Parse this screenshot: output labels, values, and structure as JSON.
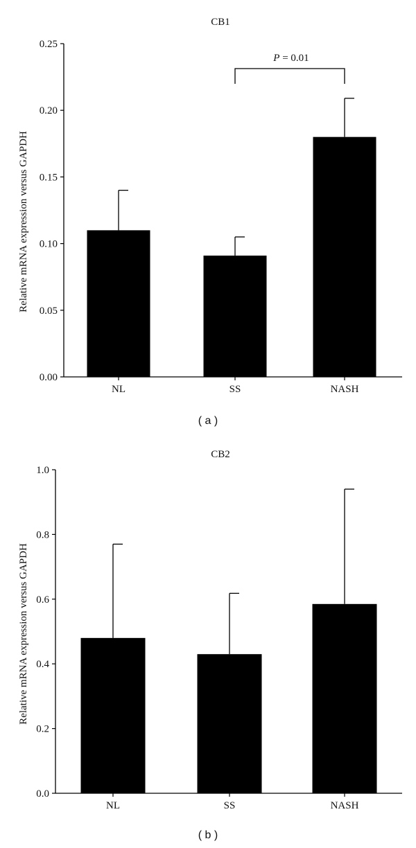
{
  "chart_data": [
    {
      "type": "bar",
      "title": "CB1",
      "ylabel": "Relative mRNA expression versus GAPDH",
      "xlabel": "",
      "categories": [
        "NL",
        "SS",
        "NASH"
      ],
      "values": [
        0.11,
        0.091,
        0.18
      ],
      "error_upper": [
        0.14,
        0.105,
        0.209
      ],
      "ylim": [
        0,
        0.25
      ],
      "yticks": [
        0.0,
        0.05,
        0.1,
        0.15,
        0.2,
        0.25
      ],
      "ytick_labels": [
        "0.00",
        "0.05",
        "0.10",
        "0.15",
        "0.20",
        "0.25"
      ],
      "bar_color": "#000000",
      "grid": false,
      "annotation": {
        "between": [
          "SS",
          "NASH"
        ],
        "italic": "P",
        "text": " = 0.01"
      },
      "panel_label": "( a )"
    },
    {
      "type": "bar",
      "title": "CB2",
      "ylabel": "Relative mRNA expression versus GAPDH",
      "xlabel": "",
      "categories": [
        "NL",
        "SS",
        "NASH"
      ],
      "values": [
        0.48,
        0.43,
        0.585
      ],
      "error_upper": [
        0.77,
        0.618,
        0.94
      ],
      "ylim": [
        0,
        1.0
      ],
      "yticks": [
        0.0,
        0.2,
        0.4,
        0.6,
        0.8,
        1.0
      ],
      "ytick_labels": [
        "0.0",
        "0.2",
        "0.4",
        "0.6",
        "0.8",
        "1.0"
      ],
      "bar_color": "#000000",
      "grid": false,
      "panel_label": "( b )"
    }
  ]
}
